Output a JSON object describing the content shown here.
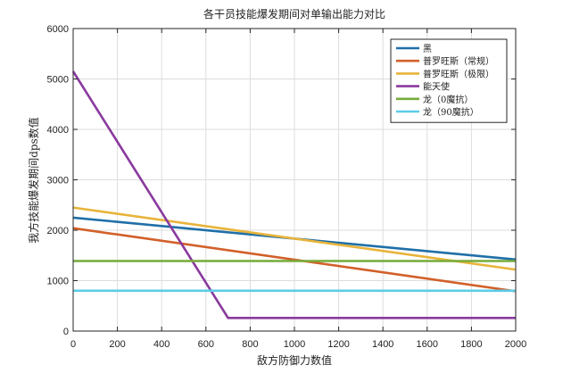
{
  "chart_data": {
    "type": "line",
    "title": "各干员技能爆发期间对单输出能力对比",
    "xlabel": "敌方防御力数值",
    "ylabel": "我方技能爆发期间dps数值",
    "xlim": [
      0,
      2000
    ],
    "ylim": [
      0,
      6000
    ],
    "xticks": [
      0,
      200,
      400,
      600,
      800,
      1000,
      1200,
      1400,
      1600,
      1800,
      2000
    ],
    "yticks": [
      0,
      1000,
      2000,
      3000,
      4000,
      5000,
      6000
    ],
    "grid": true,
    "legend_position": "top-right",
    "series": [
      {
        "name": "黑",
        "color": "#1f6fa8",
        "x": [
          0,
          2000
        ],
        "y": [
          2250,
          1420
        ]
      },
      {
        "name": "普罗旺斯（常规）",
        "color": "#d2602a",
        "x": [
          0,
          2000
        ],
        "y": [
          2040,
          790
        ]
      },
      {
        "name": "普罗旺斯（极限）",
        "color": "#e8b43a",
        "x": [
          0,
          2000
        ],
        "y": [
          2450,
          1220
        ]
      },
      {
        "name": "能天使",
        "color": "#8a3a9e",
        "x": [
          0,
          700,
          2000
        ],
        "y": [
          5150,
          260,
          260
        ]
      },
      {
        "name": "龙（0魔抗）",
        "color": "#77ab3a",
        "x": [
          0,
          2000
        ],
        "y": [
          1390,
          1390
        ]
      },
      {
        "name": "龙（90魔抗）",
        "color": "#5ccce8",
        "x": [
          0,
          2000
        ],
        "y": [
          800,
          800
        ]
      }
    ]
  }
}
